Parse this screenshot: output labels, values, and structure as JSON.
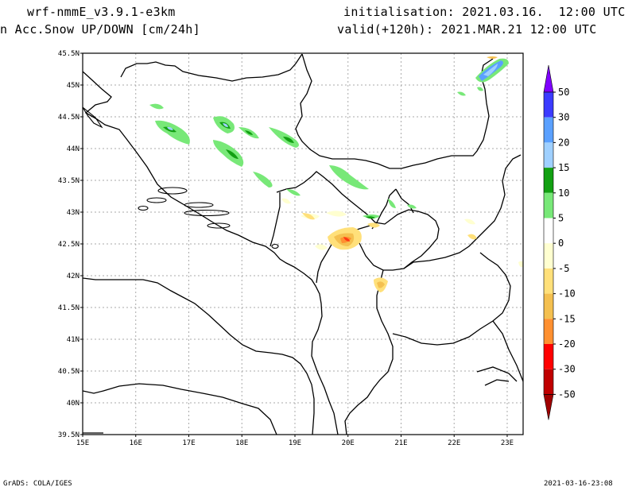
{
  "header": {
    "model": "wrf-nmmE_v3.9.1-e3km",
    "variable": "n Acc.Snow UP/DOWN [cm/24h]",
    "init": "initialisation: 2021.03.16.  12:00 UTC",
    "valid": "valid(+120h): 2021.MAR.21 12:00 UTC"
  },
  "footer": {
    "left": "GrADS: COLA/IGES",
    "right": "2021-03-16-23:08"
  },
  "map": {
    "lat_ticks": [
      "45.5N",
      "45N",
      "44.5N",
      "44N",
      "43.5N",
      "43N",
      "42.5N",
      "42N",
      "41.5N",
      "41N",
      "40.5N",
      "40N",
      "39.5N"
    ],
    "lon_ticks": [
      "15E",
      "16E",
      "17E",
      "18E",
      "19E",
      "20E",
      "21E",
      "22E",
      "23E"
    ],
    "lat_range": [
      39.5,
      45.5
    ],
    "lon_range": [
      15,
      23.3
    ]
  },
  "colorbar": {
    "labels": [
      "50",
      "30",
      "20",
      "15",
      "10",
      "5",
      "0",
      "-5",
      "-10",
      "-15",
      "-20",
      "-30",
      "-50"
    ],
    "colors": [
      "#7f00ff",
      "#3b3bff",
      "#5aa0ff",
      "#9fd0ff",
      "#12a012",
      "#78e878",
      "#ffffff",
      "#ffffd0",
      "#ffe07a",
      "#f4c050",
      "#ff9030",
      "#ff0000",
      "#c00000",
      "#a00000"
    ]
  }
}
